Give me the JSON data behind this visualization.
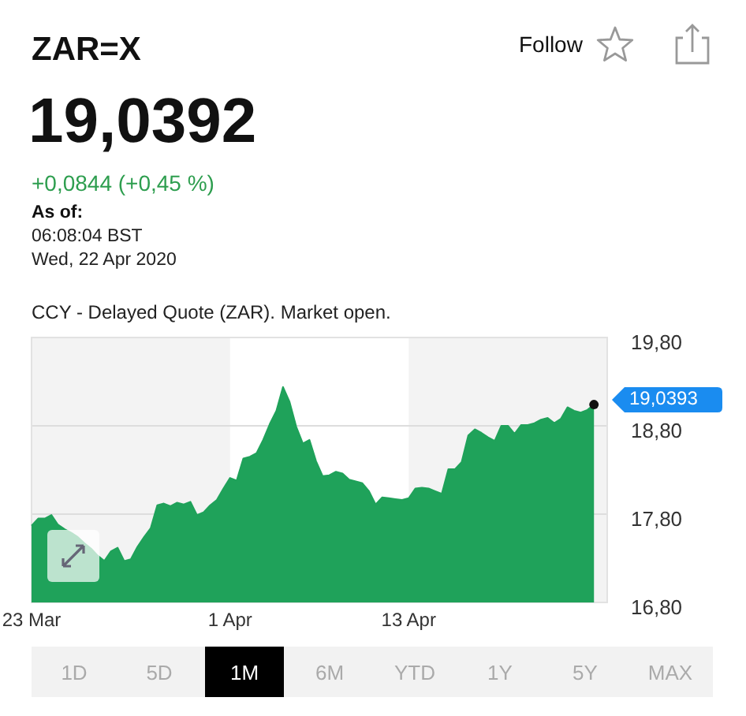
{
  "chart_data": {
    "type": "area",
    "title": "ZAR=X",
    "subtitle": "19,0392",
    "categories": [
      "23 Mar",
      null,
      null,
      null,
      null,
      null,
      null,
      null,
      null,
      null,
      null,
      null,
      null,
      null,
      null,
      null,
      null,
      null,
      null,
      null,
      null,
      null,
      null,
      null,
      null,
      null,
      null,
      null,
      null,
      null,
      "1 Apr",
      null,
      null,
      null,
      null,
      null,
      null,
      null,
      null,
      null,
      null,
      null,
      null,
      null,
      null,
      null,
      null,
      null,
      null,
      null,
      null,
      null,
      null,
      null,
      null,
      null,
      null,
      "13 Apr",
      null,
      null,
      null,
      null,
      null,
      null,
      null,
      null,
      null,
      null,
      null,
      null,
      null,
      null,
      null,
      null,
      null,
      null,
      null,
      null,
      null,
      null,
      null,
      null,
      null,
      null,
      null,
      null,
      null,
      null
    ],
    "series": [
      {
        "color": "#1fa25a",
        "values": [
          17.67,
          17.75,
          17.75,
          17.79,
          17.68,
          17.63,
          17.59,
          17.54,
          17.47,
          17.41,
          17.33,
          17.27,
          17.38,
          17.42,
          17.27,
          17.29,
          17.43,
          17.54,
          17.64,
          17.9,
          17.92,
          17.89,
          17.93,
          17.91,
          17.94,
          17.79,
          17.82,
          17.9,
          17.96,
          18.09,
          18.21,
          18.18,
          18.43,
          18.45,
          18.49,
          18.64,
          18.82,
          18.97,
          19.24,
          19.07,
          18.79,
          18.6,
          18.64,
          18.4,
          18.23,
          18.24,
          18.28,
          18.26,
          18.19,
          18.17,
          18.15,
          18.06,
          17.91,
          17.99,
          17.98,
          17.97,
          17.96,
          17.98,
          18.09,
          18.1,
          18.09,
          18.06,
          18.03,
          18.31,
          18.31,
          18.39,
          18.69,
          18.76,
          18.72,
          18.67,
          18.63,
          18.8,
          18.8,
          18.71,
          18.81,
          18.81,
          18.83,
          18.87,
          18.89,
          18.83,
          18.88,
          19.01,
          18.97,
          18.95,
          18.98,
          19.04,
          null,
          null
        ]
      }
    ],
    "ylim": [
      16.8,
      19.8
    ],
    "yticks": [
      {
        "value": 16.8,
        "label": "16,80"
      },
      {
        "value": 17.8,
        "label": "17,80"
      },
      {
        "value": 18.8,
        "label": "18,80"
      },
      {
        "value": 19.8,
        "label": "19,80"
      }
    ],
    "grid": "y",
    "annotations": [
      "+0,0844 (+0,45 %)",
      "As of:",
      "06:08:04 BST",
      "Wed, 22 Apr 2020",
      "CCY - Delayed Quote (ZAR). Market open.",
      "Follow",
      "1D",
      "5D",
      "1M",
      "6M",
      "YTD",
      "1Y",
      "5Y",
      "MAX",
      "19,0393"
    ]
  }
}
